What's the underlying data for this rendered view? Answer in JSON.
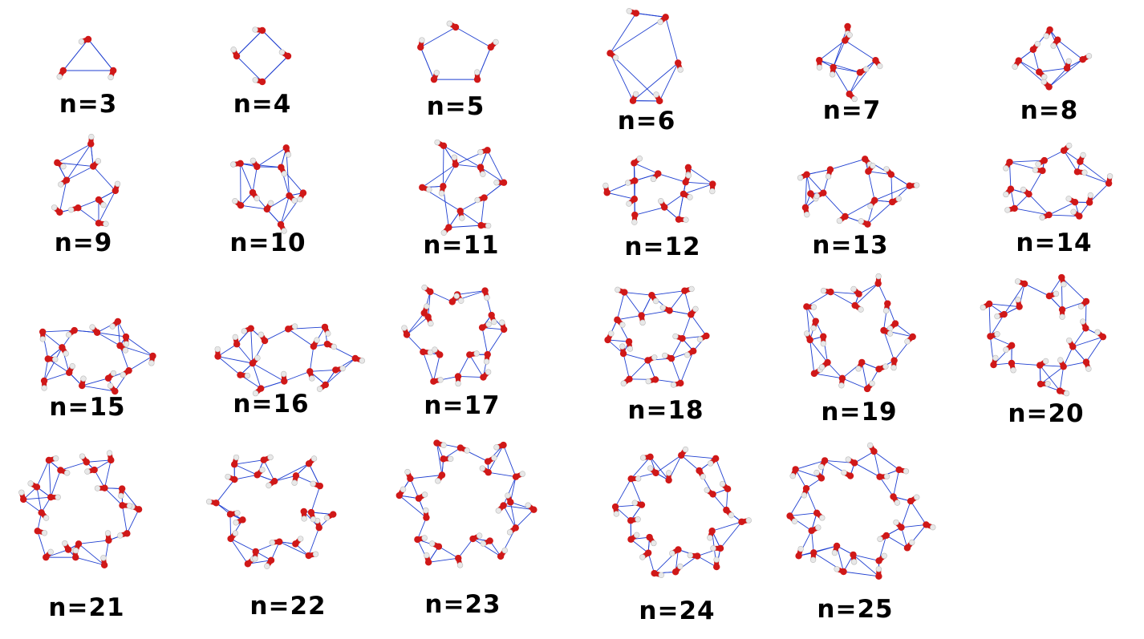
{
  "clusters": [
    {
      "label": "n=3"
    },
    {
      "label": "n=4"
    },
    {
      "label": "n=5"
    },
    {
      "label": "n=6"
    },
    {
      "label": "n=7"
    },
    {
      "label": "n=8"
    },
    {
      "label": "n=9"
    },
    {
      "label": "n=10"
    },
    {
      "label": "n=11"
    },
    {
      "label": "n=12"
    },
    {
      "label": "n=13"
    },
    {
      "label": "n=14"
    },
    {
      "label": "n=15"
    },
    {
      "label": "n=16"
    },
    {
      "label": "n=17"
    },
    {
      "label": "n=18"
    },
    {
      "label": "n=19"
    },
    {
      "label": "n=20"
    },
    {
      "label": "n=21"
    },
    {
      "label": "n=22"
    },
    {
      "label": "n=23"
    },
    {
      "label": "n=24"
    },
    {
      "label": "n=25"
    }
  ],
  "colors": {
    "oxygen": "#d01818",
    "hydrogen": "#e8e8e8",
    "hbond": "#1f3fd0",
    "label": "#000000"
  }
}
